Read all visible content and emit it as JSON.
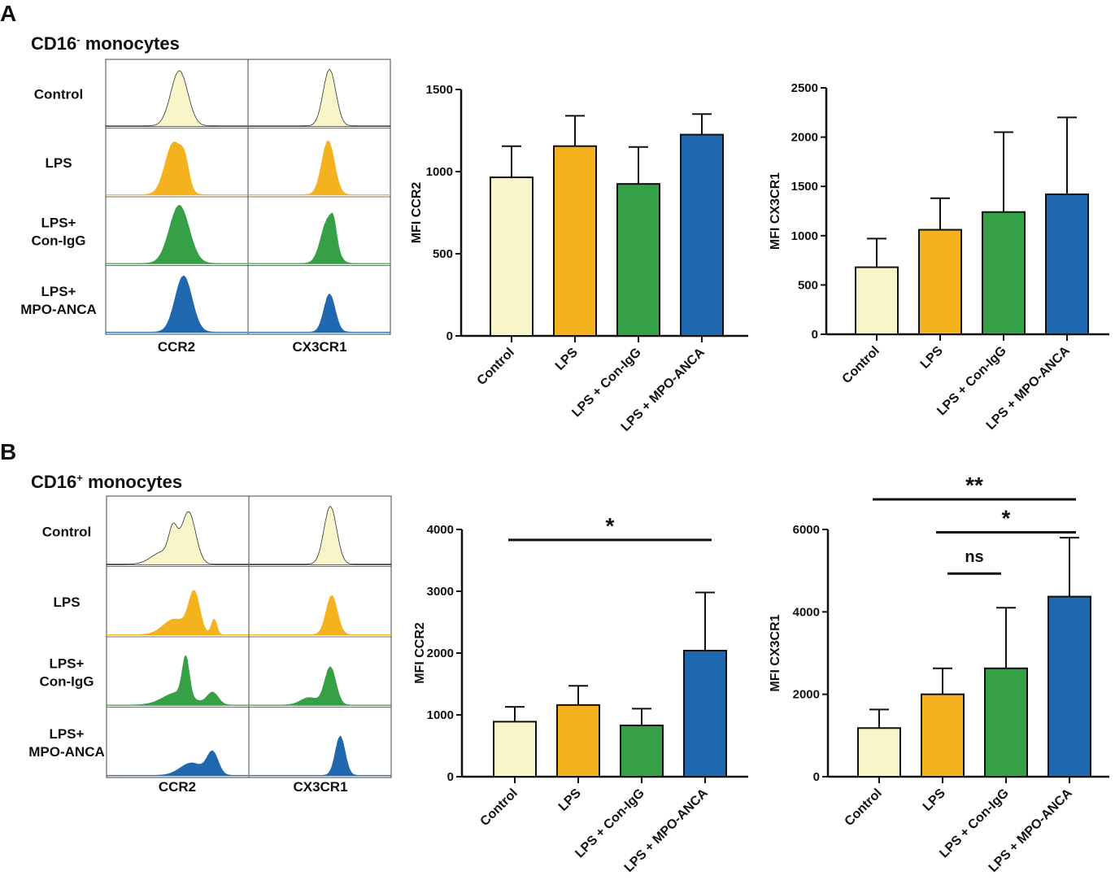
{
  "panels": [
    {
      "letter": "A",
      "title_base": "CD16",
      "title_sup": "-",
      "title_rest": " monocytes",
      "histogram_rows": [
        {
          "lines": [
            "Control"
          ],
          "color": "#f7f5c9"
        },
        {
          "lines": [
            "LPS"
          ],
          "color": "#f5b21f"
        },
        {
          "lines": [
            "LPS+",
            "Con-IgG"
          ],
          "color": "#36a046"
        },
        {
          "lines": [
            "LPS+",
            "MPO-ANCA"
          ],
          "color": "#1f68b0"
        }
      ],
      "histogram_columns": [
        "CCR2",
        "CX3CR1"
      ]
    },
    {
      "letter": "B",
      "title_base": "CD16",
      "title_sup": "+",
      "title_rest": " monocytes",
      "histogram_rows": [
        {
          "lines": [
            "Control"
          ],
          "color": "#f7f5c9"
        },
        {
          "lines": [
            "LPS"
          ],
          "color": "#f5b21f"
        },
        {
          "lines": [
            "LPS+",
            "Con-IgG"
          ],
          "color": "#36a046"
        },
        {
          "lines": [
            "LPS+",
            "MPO-ANCA"
          ],
          "color": "#1f68b0"
        }
      ],
      "histogram_columns": [
        "CCR2",
        "CX3CR1"
      ]
    }
  ],
  "chart_data": [
    {
      "id": "A-CCR2",
      "type": "bar",
      "categories": [
        "Control",
        "LPS",
        "LPS + Con-IgG",
        "LPS + MPO-ANCA"
      ],
      "values": [
        965,
        1155,
        925,
        1225
      ],
      "errors": [
        190,
        185,
        225,
        125
      ],
      "colors": [
        "#f7f5c9",
        "#f5b21f",
        "#36a046",
        "#1f68b0"
      ],
      "ylabel": "MFI CCR2",
      "ylim": [
        0,
        1500
      ],
      "yticks": [
        0,
        500,
        1000,
        1500
      ],
      "significance": []
    },
    {
      "id": "A-CX3CR1",
      "type": "bar",
      "categories": [
        "Control",
        "LPS",
        "LPS + Con-IgG",
        "LPS + MPO-ANCA"
      ],
      "values": [
        680,
        1060,
        1240,
        1420
      ],
      "errors": [
        290,
        320,
        810,
        780
      ],
      "colors": [
        "#f7f5c9",
        "#f5b21f",
        "#36a046",
        "#1f68b0"
      ],
      "ylabel": "MFI CX3CR1",
      "ylim": [
        0,
        2500
      ],
      "yticks": [
        0,
        500,
        1000,
        1500,
        2000,
        2500
      ],
      "significance": []
    },
    {
      "id": "B-CCR2",
      "type": "bar",
      "categories": [
        "Control",
        "LPS",
        "LPS + Con-IgG",
        "LPS + MPO-ANCA"
      ],
      "values": [
        890,
        1160,
        830,
        2040
      ],
      "errors": [
        240,
        310,
        270,
        940
      ],
      "colors": [
        "#f7f5c9",
        "#f5b21f",
        "#36a046",
        "#1f68b0"
      ],
      "ylabel": "MFI CCR2",
      "ylim": [
        0,
        4000
      ],
      "yticks": [
        0,
        1000,
        2000,
        3000,
        4000
      ],
      "significance": [
        {
          "from": 0,
          "to": 3,
          "label": "*",
          "level": 3830
        }
      ]
    },
    {
      "id": "B-CX3CR1",
      "type": "bar",
      "categories": [
        "Control",
        "LPS",
        "LPS + Con-IgG",
        "LPS + MPO-ANCA"
      ],
      "values": [
        1180,
        2000,
        2630,
        4370
      ],
      "errors": [
        450,
        630,
        1470,
        1430
      ],
      "colors": [
        "#f7f5c9",
        "#f5b21f",
        "#36a046",
        "#1f68b0"
      ],
      "ylabel": "MFI CX3CR1",
      "ylim": [
        0,
        6000
      ],
      "yticks": [
        0,
        2000,
        4000,
        6000
      ],
      "significance": [
        {
          "from": 1,
          "to": 2,
          "label": "ns",
          "level": 4930
        },
        {
          "from": 1,
          "to": 3,
          "label": "*",
          "level": 5930
        },
        {
          "from": 0,
          "to": 3,
          "label": "**",
          "level": 6730
        }
      ]
    }
  ]
}
